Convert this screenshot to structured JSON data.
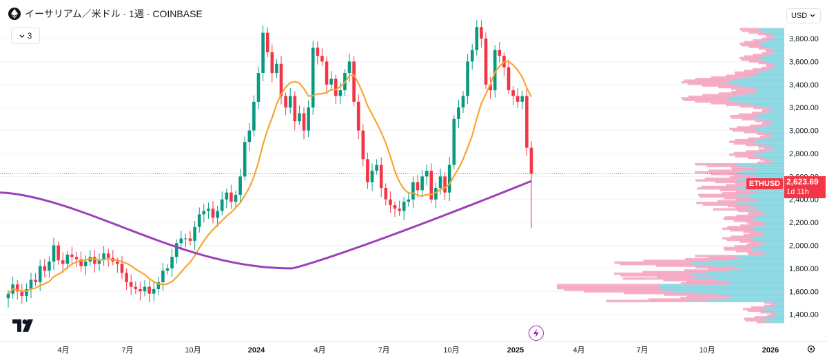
{
  "legend": {
    "title": "イーサリアム／米ドル · 1週 · COINBASE",
    "indicator_count": "3"
  },
  "icons": {
    "coin": "ethereum-icon",
    "collapse": "chevron-down-icon",
    "usd_dropdown": "chevron-down-icon",
    "logo": "tradingview-logo-icon",
    "bolt": "lightning-icon",
    "settings": "gear-icon"
  },
  "price_axis": {
    "currency": "USD",
    "ticks": [
      "3,800.00",
      "3,600.00",
      "3,400.00",
      "3,200.00",
      "3,000.00",
      "2,800.00",
      "2,600.00",
      "2,400.00",
      "2,200.00",
      "2,000.00",
      "1,800.00",
      "1,600.00",
      "1,400.00"
    ]
  },
  "time_axis": {
    "labels": [
      "4月",
      "7月",
      "10月",
      "2024",
      "4月",
      "7月",
      "10月",
      "2025",
      "4月",
      "7月",
      "10月",
      "2026"
    ]
  },
  "current": {
    "symbol": "ETHUSD",
    "price": "2,623.69",
    "countdown": "1d 11h"
  },
  "colors": {
    "up": "#089981",
    "down": "#f23645",
    "ma_fast": "#f7a531",
    "ma_slow": "#9c3fbe",
    "volume_profile_up": "#7fd3e0",
    "volume_profile_down": "#f5a3bf"
  },
  "chart_data": {
    "type": "candlestick",
    "title": "イーサリアム／米ドル · 1週 · COINBASE",
    "y_unit": "USD",
    "ylim": [
      1300,
      3900
    ],
    "x_range": [
      "2023-01",
      "2026-01"
    ],
    "price_path": [
      1580,
      1660,
      1600,
      1560,
      1620,
      1700,
      1680,
      1820,
      1780,
      1860,
      2000,
      1870,
      1840,
      1920,
      1900,
      1880,
      1820,
      1860,
      1900,
      1840,
      1880,
      1930,
      1890,
      1860,
      1840,
      1760,
      1680,
      1640,
      1620,
      1600,
      1640,
      1580,
      1620,
      1680,
      1780,
      1800,
      1900,
      2020,
      2060,
      2060,
      2040,
      2160,
      2270,
      2300,
      2320,
      2240,
      2300,
      2400,
      2460,
      2380,
      2440,
      2600,
      2900,
      3000,
      3250,
      3500,
      3850,
      3680,
      3500,
      3580,
      3300,
      3200,
      3300,
      3080,
      3150,
      3000,
      3200,
      3720,
      3650,
      3600,
      3400,
      3450,
      3300,
      3350,
      3500,
      3600,
      3250,
      3000,
      2750,
      2550,
      2650,
      2700,
      2500,
      2400,
      2350,
      2320,
      2300,
      2380,
      2400,
      2550,
      2480,
      2600,
      2650,
      2400,
      2500,
      2600,
      2460,
      2700,
      3100,
      3200,
      3300,
      3600,
      3700,
      3900,
      3800,
      3400,
      3350,
      3700,
      3650,
      3550,
      3350,
      3300,
      3250,
      3300,
      2850,
      2623.69
    ],
    "ma_slow": {
      "start": 2460,
      "min": 1800,
      "end": 2560
    },
    "current_price": 2623.69,
    "low_wick": 2150
  }
}
